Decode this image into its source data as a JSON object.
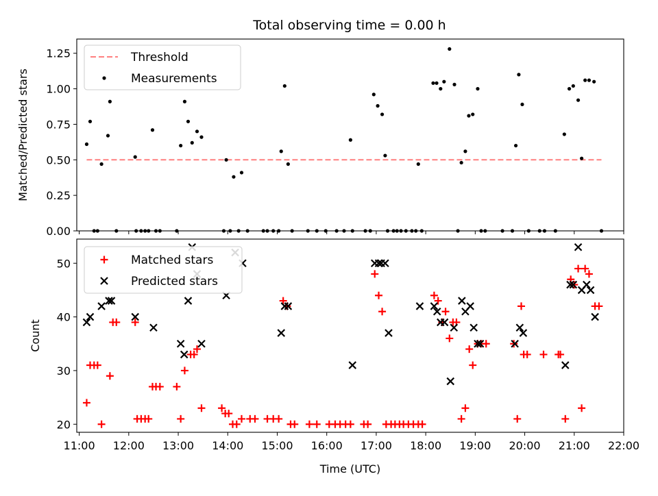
{
  "title": "Total observing time = 0.00 h",
  "colors": {
    "threshold": "#ff7f7f",
    "measurement": "#000000",
    "matched": "#ff0000",
    "predicted": "#000000"
  },
  "chart_data": [
    {
      "type": "scatter",
      "panel": "top",
      "title": "Total observing time = 0.00 h",
      "ylabel": "Matched/Predicted stars",
      "xlabel": "",
      "xlim": [
        10.95,
        22.0
      ],
      "ylim": [
        0,
        1.35
      ],
      "yticks": [
        "0.00",
        "0.25",
        "0.50",
        "0.75",
        "1.00",
        "1.25"
      ],
      "ytick_values": [
        0,
        0.25,
        0.5,
        0.75,
        1.0,
        1.25
      ],
      "xtick_values": [
        11,
        12,
        13,
        14,
        15,
        16,
        17,
        18,
        19,
        20,
        21,
        22
      ],
      "legend": [
        "Threshold",
        "Measurements"
      ],
      "legend_position": "top-left",
      "threshold": {
        "x": [
          11.15,
          21.55
        ],
        "y": 0.5
      },
      "series": [
        {
          "name": "Measurements",
          "points": [
            [
              11.15,
              0.61
            ],
            [
              11.22,
              0.77
            ],
            [
              11.3,
              0
            ],
            [
              11.37,
              0
            ],
            [
              11.45,
              0.47
            ],
            [
              11.58,
              0.67
            ],
            [
              11.62,
              0.91
            ],
            [
              11.75,
              0
            ],
            [
              12.13,
              0.52
            ],
            [
              12.15,
              0
            ],
            [
              12.25,
              0
            ],
            [
              12.33,
              0
            ],
            [
              12.4,
              0
            ],
            [
              12.48,
              0.71
            ],
            [
              12.55,
              0
            ],
            [
              12.63,
              0
            ],
            [
              12.97,
              0
            ],
            [
              13.05,
              0.6
            ],
            [
              13.13,
              0.91
            ],
            [
              13.2,
              0.77
            ],
            [
              13.28,
              0.62
            ],
            [
              13.38,
              0.7
            ],
            [
              13.47,
              0.66
            ],
            [
              13.92,
              0
            ],
            [
              13.97,
              0.5
            ],
            [
              14.05,
              0
            ],
            [
              14.12,
              0.38
            ],
            [
              14.22,
              0
            ],
            [
              14.28,
              0.41
            ],
            [
              14.4,
              0
            ],
            [
              14.72,
              0
            ],
            [
              14.8,
              0
            ],
            [
              14.92,
              0
            ],
            [
              15.03,
              0
            ],
            [
              15.08,
              0.56
            ],
            [
              15.15,
              1.02
            ],
            [
              15.22,
              0.47
            ],
            [
              15.3,
              0
            ],
            [
              15.62,
              0
            ],
            [
              15.8,
              0
            ],
            [
              15.98,
              0
            ],
            [
              16.2,
              0
            ],
            [
              16.35,
              0
            ],
            [
              16.48,
              0.64
            ],
            [
              16.52,
              0
            ],
            [
              16.78,
              0
            ],
            [
              16.88,
              0
            ],
            [
              16.95,
              0.96
            ],
            [
              17.03,
              0.88
            ],
            [
              17.12,
              0.82
            ],
            [
              17.18,
              0.53
            ],
            [
              17.23,
              0
            ],
            [
              17.35,
              0
            ],
            [
              17.42,
              0
            ],
            [
              17.5,
              0
            ],
            [
              17.6,
              0
            ],
            [
              17.72,
              0
            ],
            [
              17.8,
              0
            ],
            [
              17.85,
              0.47
            ],
            [
              17.92,
              0
            ],
            [
              18.15,
              1.04
            ],
            [
              18.22,
              1.04
            ],
            [
              18.3,
              1.0
            ],
            [
              18.37,
              1.05
            ],
            [
              18.48,
              1.28
            ],
            [
              18.58,
              1.03
            ],
            [
              18.65,
              0
            ],
            [
              18.72,
              0.48
            ],
            [
              18.8,
              0.56
            ],
            [
              18.87,
              0.81
            ],
            [
              18.95,
              0.82
            ],
            [
              19.05,
              1.0
            ],
            [
              19.12,
              0
            ],
            [
              19.2,
              0
            ],
            [
              19.55,
              0
            ],
            [
              19.75,
              0
            ],
            [
              19.82,
              0.6
            ],
            [
              19.88,
              1.1
            ],
            [
              19.95,
              0.89
            ],
            [
              20.08,
              0
            ],
            [
              20.3,
              0
            ],
            [
              20.4,
              0
            ],
            [
              20.62,
              0
            ],
            [
              20.8,
              0.68
            ],
            [
              20.9,
              1.0
            ],
            [
              20.98,
              1.02
            ],
            [
              21.08,
              0.92
            ],
            [
              21.15,
              0.51
            ],
            [
              21.22,
              1.06
            ],
            [
              21.3,
              1.06
            ],
            [
              21.4,
              1.05
            ],
            [
              21.55,
              0
            ]
          ]
        }
      ]
    },
    {
      "type": "scatter",
      "panel": "bottom",
      "title": "",
      "xlabel": "Time (UTC)",
      "ylabel": "Count",
      "xlim": [
        10.95,
        22.0
      ],
      "ylim": [
        18.5,
        54.5
      ],
      "yticks": [
        "20",
        "30",
        "40",
        "50"
      ],
      "ytick_values": [
        20,
        30,
        40,
        50
      ],
      "xtick_values": [
        11,
        12,
        13,
        14,
        15,
        16,
        17,
        18,
        19,
        20,
        21,
        22
      ],
      "xticks": [
        "11:00",
        "12:00",
        "13:00",
        "14:00",
        "15:00",
        "16:00",
        "17:00",
        "18:00",
        "19:00",
        "20:00",
        "21:00",
        "22:00"
      ],
      "legend": [
        "Matched stars",
        "Predicted stars"
      ],
      "legend_position": "top-left",
      "series": [
        {
          "name": "Matched stars",
          "points": [
            [
              11.15,
              24
            ],
            [
              11.22,
              31
            ],
            [
              11.3,
              31
            ],
            [
              11.37,
              31
            ],
            [
              11.45,
              20
            ],
            [
              11.62,
              29
            ],
            [
              11.68,
              39
            ],
            [
              11.75,
              39
            ],
            [
              12.13,
              39
            ],
            [
              12.17,
              21
            ],
            [
              12.25,
              21
            ],
            [
              12.33,
              21
            ],
            [
              12.4,
              21
            ],
            [
              12.48,
              27
            ],
            [
              12.55,
              27
            ],
            [
              12.63,
              27
            ],
            [
              12.97,
              27
            ],
            [
              13.05,
              21
            ],
            [
              13.13,
              30
            ],
            [
              13.25,
              33
            ],
            [
              13.32,
              33
            ],
            [
              13.38,
              34
            ],
            [
              13.47,
              23
            ],
            [
              13.88,
              23
            ],
            [
              13.95,
              22
            ],
            [
              14.02,
              22
            ],
            [
              14.1,
              20
            ],
            [
              14.18,
              20
            ],
            [
              14.28,
              21
            ],
            [
              14.45,
              21
            ],
            [
              14.55,
              21
            ],
            [
              14.8,
              21
            ],
            [
              14.92,
              21
            ],
            [
              15.03,
              21
            ],
            [
              15.12,
              43
            ],
            [
              15.2,
              42
            ],
            [
              15.27,
              20
            ],
            [
              15.35,
              20
            ],
            [
              15.65,
              20
            ],
            [
              15.8,
              20
            ],
            [
              16.05,
              20
            ],
            [
              16.17,
              20
            ],
            [
              16.27,
              20
            ],
            [
              16.38,
              20
            ],
            [
              16.48,
              20
            ],
            [
              16.75,
              20
            ],
            [
              16.83,
              20
            ],
            [
              16.97,
              48
            ],
            [
              17.05,
              44
            ],
            [
              17.12,
              41
            ],
            [
              17.2,
              20
            ],
            [
              17.3,
              20
            ],
            [
              17.38,
              20
            ],
            [
              17.47,
              20
            ],
            [
              17.55,
              20
            ],
            [
              17.65,
              20
            ],
            [
              17.75,
              20
            ],
            [
              17.85,
              20
            ],
            [
              17.93,
              20
            ],
            [
              18.17,
              44
            ],
            [
              18.25,
              43
            ],
            [
              18.33,
              39
            ],
            [
              18.4,
              41
            ],
            [
              18.48,
              36
            ],
            [
              18.55,
              39
            ],
            [
              18.62,
              39
            ],
            [
              18.72,
              21
            ],
            [
              18.8,
              23
            ],
            [
              18.88,
              34
            ],
            [
              18.95,
              31
            ],
            [
              19.05,
              35
            ],
            [
              19.12,
              35
            ],
            [
              19.22,
              35
            ],
            [
              19.78,
              35
            ],
            [
              19.85,
              21
            ],
            [
              19.93,
              42
            ],
            [
              19.98,
              33
            ],
            [
              20.05,
              33
            ],
            [
              20.38,
              33
            ],
            [
              20.68,
              33
            ],
            [
              20.72,
              33
            ],
            [
              20.82,
              21
            ],
            [
              20.93,
              47
            ],
            [
              21.0,
              46
            ],
            [
              21.08,
              49
            ],
            [
              21.15,
              23
            ],
            [
              21.22,
              49
            ],
            [
              21.3,
              48
            ],
            [
              21.42,
              42
            ],
            [
              21.5,
              42
            ]
          ]
        },
        {
          "name": "Predicted stars",
          "points": [
            [
              11.15,
              39
            ],
            [
              11.22,
              40
            ],
            [
              11.45,
              42
            ],
            [
              11.6,
              43
            ],
            [
              11.65,
              43
            ],
            [
              12.13,
              40
            ],
            [
              12.5,
              38
            ],
            [
              13.05,
              35
            ],
            [
              13.12,
              33
            ],
            [
              13.2,
              43
            ],
            [
              13.28,
              53
            ],
            [
              13.38,
              48
            ],
            [
              13.47,
              35
            ],
            [
              13.97,
              44
            ],
            [
              14.15,
              52
            ],
            [
              14.3,
              50
            ],
            [
              15.08,
              37
            ],
            [
              15.15,
              42
            ],
            [
              15.22,
              42
            ],
            [
              16.52,
              31
            ],
            [
              16.97,
              50
            ],
            [
              17.05,
              50
            ],
            [
              17.1,
              50
            ],
            [
              17.18,
              50
            ],
            [
              17.25,
              37
            ],
            [
              17.88,
              42
            ],
            [
              18.17,
              42
            ],
            [
              18.23,
              41
            ],
            [
              18.3,
              39
            ],
            [
              18.38,
              39
            ],
            [
              18.5,
              28
            ],
            [
              18.57,
              38
            ],
            [
              18.73,
              43
            ],
            [
              18.8,
              41
            ],
            [
              18.9,
              42
            ],
            [
              18.97,
              38
            ],
            [
              19.05,
              35
            ],
            [
              19.1,
              35
            ],
            [
              19.8,
              35
            ],
            [
              19.9,
              38
            ],
            [
              19.97,
              37
            ],
            [
              20.82,
              31
            ],
            [
              20.92,
              46
            ],
            [
              20.98,
              46
            ],
            [
              21.08,
              53
            ],
            [
              21.15,
              45
            ],
            [
              21.25,
              46
            ],
            [
              21.33,
              45
            ],
            [
              21.42,
              40
            ]
          ]
        }
      ]
    }
  ]
}
